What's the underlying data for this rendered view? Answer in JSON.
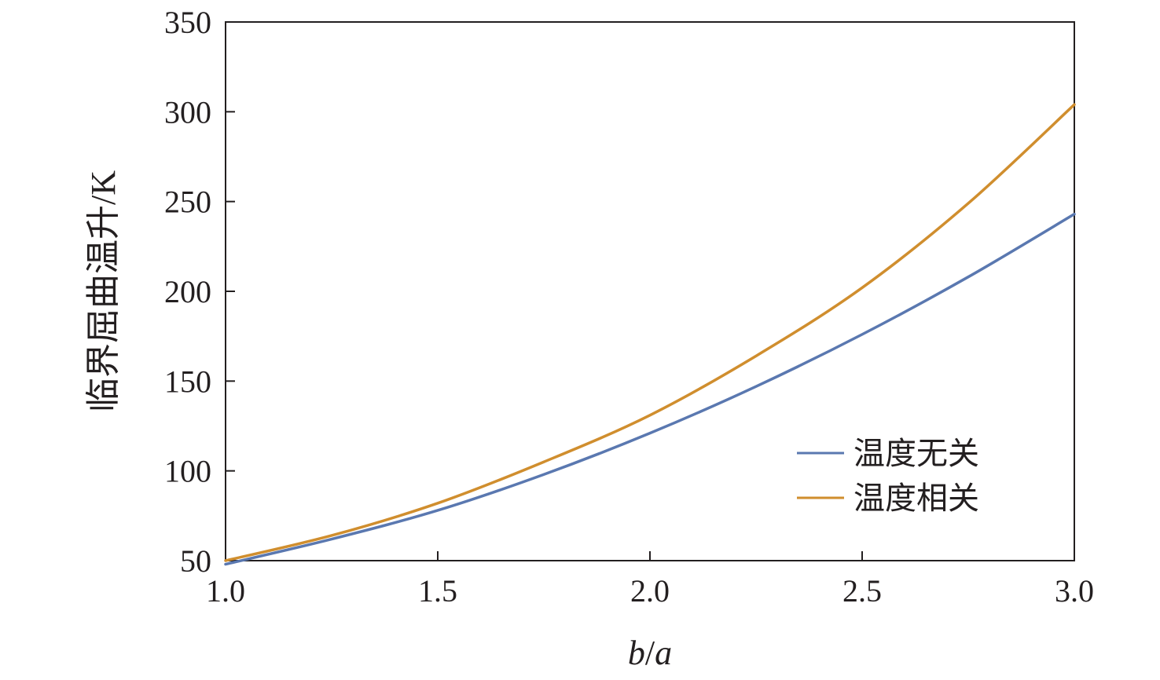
{
  "chart_data": {
    "type": "line",
    "xlabel": "b/a",
    "xlabel_parts": {
      "numerator": "b",
      "separator": "/",
      "denominator": "a"
    },
    "ylabel": "临界屈曲温升/K",
    "xlim": [
      1.0,
      3.0
    ],
    "ylim": [
      50,
      350
    ],
    "x_ticks": [
      "1.0",
      "1.5",
      "2.0",
      "2.5",
      "3.0"
    ],
    "y_ticks": [
      "50",
      "100",
      "150",
      "200",
      "250",
      "300",
      "350"
    ],
    "grid": false,
    "legend_position": "lower-right",
    "x": [
      1.0,
      1.25,
      1.5,
      1.75,
      2.0,
      2.25,
      2.5,
      2.75,
      3.0
    ],
    "series": [
      {
        "name": "温度无关",
        "color": "#5a78b0",
        "values": [
          48,
          62,
          78,
          98,
          121,
          147,
          176,
          208,
          243
        ]
      },
      {
        "name": "温度相关",
        "color": "#d08e2e",
        "values": [
          50,
          64,
          82,
          105,
          131,
          164,
          202,
          249,
          304
        ]
      }
    ]
  }
}
